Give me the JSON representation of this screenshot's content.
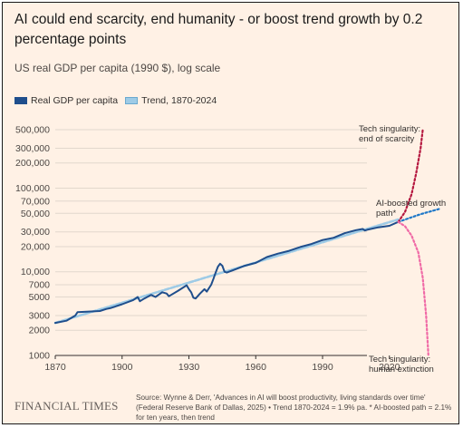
{
  "chart_data": {
    "type": "line",
    "title": "AI could end scarcity, end humanity - or boost trend growth by 0.2 percentage points",
    "subtitle": "US real GDP per capita (1990 $), log scale",
    "yscale": "log",
    "xlim": [
      1870,
      2043
    ],
    "ylim": [
      1000,
      600000
    ],
    "x_ticks": [
      1870,
      1900,
      1930,
      1960,
      1990,
      2020
    ],
    "y_ticks": [
      1000,
      2000,
      3000,
      5000,
      7000,
      10000,
      20000,
      30000,
      50000,
      70000,
      100000,
      200000,
      300000,
      500000
    ],
    "y_tick_labels": [
      "1000",
      "2000",
      "3000",
      "5000",
      "7000",
      "10,000",
      "20,000",
      "30,000",
      "50,000",
      "70,000",
      "100,000",
      "200,000",
      "300,000",
      "500,000"
    ],
    "grid": true,
    "legend_position": "top-left",
    "series": [
      {
        "name": "Real GDP per capita",
        "color": "#1f4e8c",
        "style": "solid",
        "x": [
          1870,
          1875,
          1879,
          1880,
          1885,
          1890,
          1893,
          1895,
          1900,
          1905,
          1907,
          1908,
          1910,
          1913,
          1915,
          1918,
          1920,
          1921,
          1925,
          1929,
          1930,
          1931,
          1932,
          1933,
          1935,
          1937,
          1938,
          1940,
          1941,
          1942,
          1943,
          1944,
          1945,
          1946,
          1947,
          1950,
          1955,
          1960,
          1965,
          1970,
          1975,
          1980,
          1985,
          1990,
          1995,
          2000,
          2005,
          2008,
          2009,
          2010,
          2015,
          2020,
          2024
        ],
        "y": [
          2450,
          2600,
          3000,
          3300,
          3350,
          3400,
          3600,
          3700,
          4100,
          4600,
          5000,
          4450,
          4800,
          5300,
          5000,
          5700,
          5500,
          5100,
          5900,
          6900,
          6200,
          5700,
          4900,
          4800,
          5500,
          6200,
          5800,
          7000,
          8200,
          9800,
          11500,
          12500,
          11800,
          10000,
          9800,
          10500,
          11800,
          12800,
          15000,
          16500,
          17800,
          19800,
          21500,
          24000,
          25500,
          29000,
          31500,
          32500,
          31200,
          31800,
          34000,
          35500,
          39500
        ]
      },
      {
        "name": "Trend, 1870-2024",
        "color": "#9ecbe6",
        "style": "solid",
        "x": [
          1870,
          2024
        ],
        "y": [
          2450,
          42300
        ]
      },
      {
        "name": "AI-boosted growth path*",
        "color": "#1f78c8",
        "style": "dotted",
        "x": [
          2024,
          2034,
          2043
        ],
        "y": [
          39500,
          48800,
          57000
        ]
      },
      {
        "name": "Tech singularity: end of scarcity",
        "color": "#b5173f",
        "style": "dotted",
        "x": [
          2024,
          2027,
          2030,
          2032,
          2034,
          2035
        ],
        "y": [
          39500,
          52000,
          85000,
          150000,
          300000,
          500000
        ]
      },
      {
        "name": "Tech singularity: human extinction",
        "color": "#f06aa6",
        "style": "dotted",
        "x": [
          2024,
          2027,
          2030,
          2033,
          2035,
          2036.5,
          2037.5
        ],
        "y": [
          39500,
          35000,
          27000,
          17000,
          8500,
          3000,
          1000
        ]
      }
    ],
    "annotations": [
      {
        "text": "Tech singularity: end of scarcity",
        "lines": [
          "Tech singularity:",
          "end of scarcity"
        ]
      },
      {
        "text": "AI-boosted growth path*",
        "lines": [
          "AI-boosted growth",
          "path*"
        ]
      },
      {
        "text": "Tech singularity: human extinction",
        "lines": [
          "Tech singularity:",
          "human extinction"
        ]
      }
    ]
  },
  "legend": [
    {
      "label": "Real GDP per capita",
      "color": "#1f4e8c"
    },
    {
      "label": "Trend, 1870-2024",
      "color": "#9ecbe6"
    }
  ],
  "footer": {
    "brand": "FINANCIAL TIMES",
    "source": "Source: Wynne & Derr, 'Advances in AI will boost productivity, living standards over time' (Federal Reserve Bank of Dallas, 2025) • Trend 1870-2024 = 1.9% pa. * AI-boosted path = 2.1% for ten years, then trend"
  },
  "colors": {
    "background": "#fff1e5",
    "grid": "#e2d8cd",
    "axis": "#33302e"
  }
}
